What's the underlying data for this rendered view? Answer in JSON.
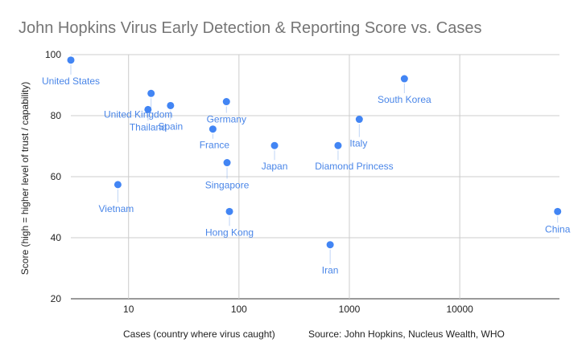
{
  "chart_data": {
    "type": "scatter",
    "title": "John Hopkins Virus Early Detection & Reporting Score vs. Cases",
    "xlabel": "Cases (country where virus caught)",
    "ylabel": "Score (high = higher level of trust / capability)",
    "source": "Source: John Hopkins, Nucleus Wealth, WHO",
    "x_scale": "log",
    "xlim": [
      3,
      80000
    ],
    "ylim": [
      20,
      100
    ],
    "x_ticks": [
      10,
      100,
      1000,
      10000
    ],
    "x_tick_labels": [
      "10",
      "100",
      "1000",
      "10000"
    ],
    "y_ticks": [
      20,
      40,
      60,
      80,
      100
    ],
    "y_tick_labels": [
      "20",
      "40",
      "60",
      "80",
      "100"
    ],
    "grid": true,
    "legend": "none",
    "color": "#4285f4",
    "points": [
      {
        "label": "United States",
        "x": 3,
        "y": 98.2
      },
      {
        "label": "United Kingdom",
        "x": 16,
        "y": 87.3
      },
      {
        "label": "Spain",
        "x": 24,
        "y": 83.3
      },
      {
        "label": "Thailand",
        "x": 15,
        "y": 82
      },
      {
        "label": "Germany",
        "x": 77,
        "y": 84.6
      },
      {
        "label": "France",
        "x": 58,
        "y": 75.6
      },
      {
        "label": "South Korea",
        "x": 3150,
        "y": 92.1
      },
      {
        "label": "Italy",
        "x": 1230,
        "y": 78.8
      },
      {
        "label": "Japan",
        "x": 210,
        "y": 70.2
      },
      {
        "label": "Diamond Princess",
        "x": 790,
        "y": 70.2
      },
      {
        "label": "Singapore",
        "x": 78,
        "y": 64.6
      },
      {
        "label": "Vietnam",
        "x": 8,
        "y": 57.4
      },
      {
        "label": "Hong Kong",
        "x": 82,
        "y": 48.6
      },
      {
        "label": "Iran",
        "x": 670,
        "y": 37.7
      },
      {
        "label": "China",
        "x": 77000,
        "y": 48.6
      }
    ]
  }
}
